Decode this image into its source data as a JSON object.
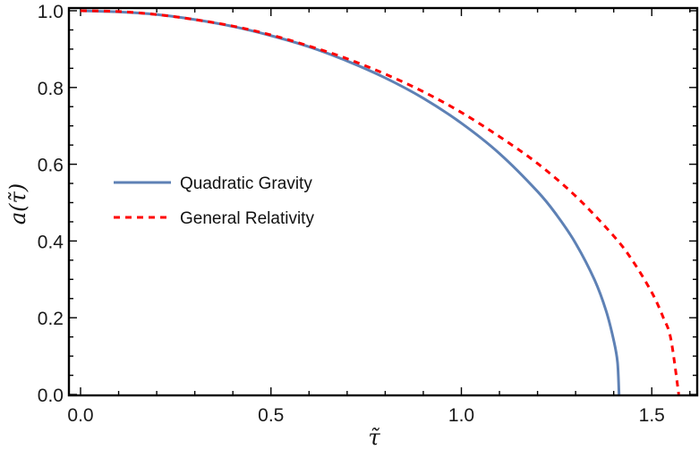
{
  "chart_data": {
    "type": "line",
    "title": "",
    "xlabel": "τ̃",
    "ylabel": "a(τ̃)",
    "xlim": [
      -0.03,
      1.62
    ],
    "ylim": [
      0.0,
      1.0
    ],
    "grid": false,
    "legend_position": "inside-left-middle",
    "x_ticks": [
      0.0,
      0.5,
      1.0,
      1.5
    ],
    "x_tick_labels": [
      "0.0",
      "0.5",
      "1.0",
      "1.5"
    ],
    "y_ticks": [
      0.0,
      0.2,
      0.4,
      0.6,
      0.8,
      1.0
    ],
    "y_tick_labels": [
      "0.0",
      "0.2",
      "0.4",
      "0.6",
      "0.8",
      "1.0"
    ],
    "series": [
      {
        "name": "Quadratic Gravity",
        "color": "#5e81b5",
        "style": "solid",
        "x": [
          0.0,
          0.1,
          0.2,
          0.3,
          0.4,
          0.5,
          0.6,
          0.7,
          0.8,
          0.9,
          1.0,
          1.1,
          1.2,
          1.25,
          1.3,
          1.35,
          1.38,
          1.4,
          1.41,
          1.414
        ],
        "y": [
          1.0,
          0.997,
          0.99,
          0.977,
          0.959,
          0.935,
          0.906,
          0.869,
          0.825,
          0.772,
          0.707,
          0.628,
          0.529,
          0.468,
          0.394,
          0.298,
          0.218,
          0.141,
          0.084,
          0.0
        ]
      },
      {
        "name": "General Relativity",
        "color": "#ff0000",
        "style": "dashed",
        "x": [
          0.0,
          0.1,
          0.2,
          0.3,
          0.4,
          0.5,
          0.6,
          0.7,
          0.8,
          0.9,
          1.0,
          1.1,
          1.2,
          1.3,
          1.4,
          1.45,
          1.5,
          1.53,
          1.55,
          1.5708
        ],
        "y": [
          1.0,
          0.998,
          0.99,
          0.977,
          0.96,
          0.937,
          0.908,
          0.875,
          0.835,
          0.789,
          0.735,
          0.672,
          0.602,
          0.517,
          0.413,
          0.348,
          0.266,
          0.201,
          0.145,
          0.0
        ]
      }
    ]
  },
  "legend": {
    "items": [
      {
        "label": "Quadratic Gravity",
        "color": "#5e81b5",
        "style": "solid"
      },
      {
        "label": "General Relativity",
        "color": "#ff0000",
        "style": "dashed"
      }
    ]
  },
  "axes": {
    "x_title": "τ̃",
    "y_title": "a(τ̃)"
  }
}
